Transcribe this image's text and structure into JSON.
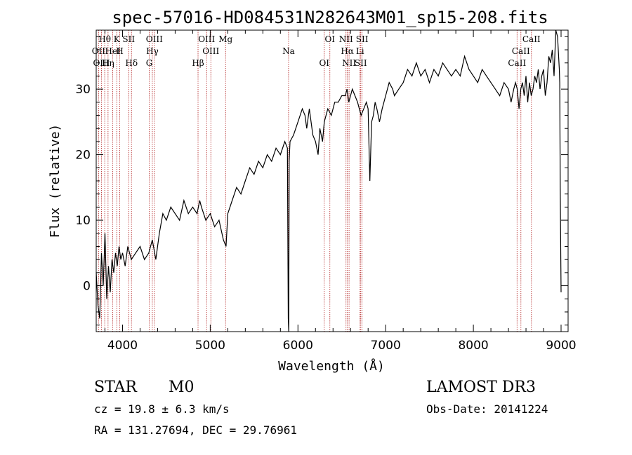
{
  "chart_data": {
    "type": "line",
    "title": "spec-57016-HD084531N282643M01_sp15-208.fits",
    "xlabel": "Wavelength (Å)",
    "ylabel": "Flux (relative)",
    "xlim": [
      3700,
      9080
    ],
    "ylim": [
      -7,
      39
    ],
    "xticks": [
      4000,
      5000,
      6000,
      7000,
      8000,
      9000
    ],
    "yticks": [
      0,
      10,
      20,
      30
    ],
    "series": [
      {
        "x": [
          3700,
          3720,
          3740,
          3760,
          3780,
          3800,
          3820,
          3840,
          3860,
          3880,
          3900,
          3920,
          3940,
          3960,
          3980,
          4000,
          4030,
          4060,
          4100,
          4150,
          4200,
          4250,
          4300,
          4340,
          4380,
          4420,
          4460,
          4500,
          4550,
          4600,
          4650,
          4700,
          4750,
          4800,
          4850,
          4880,
          4900,
          4950,
          5000,
          5050,
          5100,
          5150,
          5180,
          5200,
          5250,
          5300,
          5350,
          5400,
          5450,
          5500,
          5550,
          5600,
          5650,
          5700,
          5750,
          5800,
          5850,
          5880,
          5890,
          5895,
          5900,
          5910,
          5950,
          6000,
          6050,
          6080,
          6100,
          6130,
          6150,
          6170,
          6200,
          6230,
          6250,
          6280,
          6300,
          6340,
          6380,
          6420,
          6460,
          6500,
          6540,
          6560,
          6580,
          6600,
          6620,
          6650,
          6680,
          6700,
          6720,
          6750,
          6780,
          6800,
          6820,
          6840,
          6860,
          6880,
          6900,
          6930,
          6960,
          7000,
          7040,
          7080,
          7100,
          7150,
          7200,
          7250,
          7300,
          7350,
          7400,
          7450,
          7500,
          7550,
          7600,
          7650,
          7700,
          7750,
          7800,
          7850,
          7900,
          7950,
          8000,
          8050,
          8100,
          8150,
          8200,
          8250,
          8300,
          8350,
          8400,
          8430,
          8460,
          8480,
          8500,
          8520,
          8540,
          8560,
          8580,
          8600,
          8620,
          8640,
          8660,
          8680,
          8700,
          8720,
          8740,
          8760,
          8780,
          8800,
          8820,
          8840,
          8860,
          8880,
          8900,
          8920,
          8940,
          8960,
          8980,
          8985,
          8990,
          9000
        ],
        "y": [
          2,
          -3,
          -5,
          5,
          0,
          8,
          -2,
          3,
          -1,
          4,
          2,
          5,
          3,
          6,
          4,
          5,
          3,
          6,
          4,
          5,
          6,
          4,
          5,
          7,
          4,
          8,
          11,
          10,
          12,
          11,
          10,
          13,
          11,
          12,
          11,
          13,
          12,
          10,
          11,
          9,
          10,
          7,
          6,
          11,
          13,
          15,
          14,
          16,
          18,
          17,
          19,
          18,
          20,
          19,
          21,
          20,
          22,
          21,
          -5,
          -7,
          19,
          22,
          23,
          25,
          27,
          26,
          24,
          27,
          25,
          23,
          22,
          20,
          24,
          22,
          25,
          27,
          26,
          28,
          28,
          29,
          29,
          30,
          28,
          29,
          30,
          29,
          28,
          27,
          26,
          27,
          28,
          27,
          16,
          25,
          26,
          28,
          27,
          25,
          27,
          29,
          31,
          30,
          29,
          30,
          31,
          33,
          32,
          34,
          32,
          33,
          31,
          33,
          32,
          34,
          33,
          32,
          33,
          32,
          35,
          33,
          32,
          31,
          33,
          32,
          31,
          30,
          29,
          31,
          30,
          28,
          30,
          31,
          30,
          27,
          30,
          31,
          29,
          32,
          28,
          31,
          29,
          30,
          32,
          31,
          33,
          30,
          32,
          33,
          29,
          31,
          35,
          34,
          36,
          32,
          39,
          38,
          33,
          31,
          15,
          -1
        ]
      }
    ],
    "lines": [
      {
        "label": "Hθ",
        "x": 3797
      },
      {
        "label": "OII",
        "x": 3727
      },
      {
        "label": "OIII",
        "x": 3760
      },
      {
        "label": "K",
        "x": 3934
      },
      {
        "label": "HeI",
        "x": 3889
      },
      {
        "label": "Hη",
        "x": 3835
      },
      {
        "label": "SII",
        "x": 4070
      },
      {
        "label": "H",
        "x": 3969
      },
      {
        "label": "Hδ",
        "x": 4102
      },
      {
        "label": "OIII",
        "x": 4363
      },
      {
        "label": "Hγ",
        "x": 4340
      },
      {
        "label": "G",
        "x": 4305
      },
      {
        "label": "OIII",
        "x": 4959
      },
      {
        "label": "OIII",
        "x": 5007
      },
      {
        "label": "Hβ",
        "x": 4861
      },
      {
        "label": "Mg",
        "x": 5175
      },
      {
        "label": "Na",
        "x": 5893
      },
      {
        "label": "OI",
        "x": 6300
      },
      {
        "label": "OI",
        "x": 6364
      },
      {
        "label": "Hα",
        "x": 6563
      },
      {
        "label": "SII",
        "x": 6716
      },
      {
        "label": "NII",
        "x": 6548
      },
      {
        "label": "Li",
        "x": 6708
      },
      {
        "label": "NII",
        "x": 6583
      },
      {
        "label": "SII",
        "x": 6731
      },
      {
        "label": "CaII",
        "x": 8542
      },
      {
        "label": "CaII",
        "x": 8498
      },
      {
        "label": "CaII",
        "x": 8662
      }
    ]
  },
  "info": {
    "class_label": "STAR",
    "subclass": "M0",
    "survey": "LAMOST DR3",
    "cz": "cz = 19.8 ± 6.3 km/s",
    "obs_date": "Obs-Date: 20141224",
    "coords": "RA = 131.27694, DEC =  29.76961"
  },
  "colors": {
    "spectrum": "#000000",
    "lines": "#b22222",
    "axes": "#000000"
  }
}
